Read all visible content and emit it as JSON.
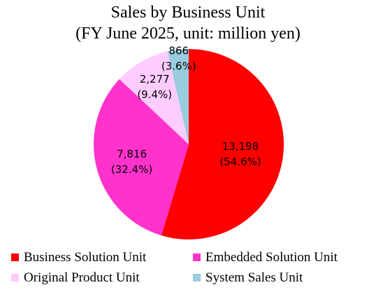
{
  "chart_data": {
    "type": "pie",
    "title": "Sales by Business Unit",
    "subtitle": "(FY June 2025, unit: million yen)",
    "slices": [
      {
        "name": "Business Solution Unit",
        "value": 13198,
        "value_label": "13,198",
        "percent_label": "(54.6%)",
        "color": "#ff0000"
      },
      {
        "name": "Embedded Solution Unit",
        "value": 7816,
        "value_label": "7,816",
        "percent_label": "(32.4%)",
        "color": "#ff33cc"
      },
      {
        "name": "Original Product Unit",
        "value": 2277,
        "value_label": "2,277",
        "percent_label": "(9.4%)",
        "color": "#ffccff"
      },
      {
        "name": "System Sales Unit",
        "value": 866,
        "value_label": "866",
        "percent_label": "(3.6%)",
        "color": "#99ccdd"
      }
    ],
    "legend_position": "bottom"
  }
}
